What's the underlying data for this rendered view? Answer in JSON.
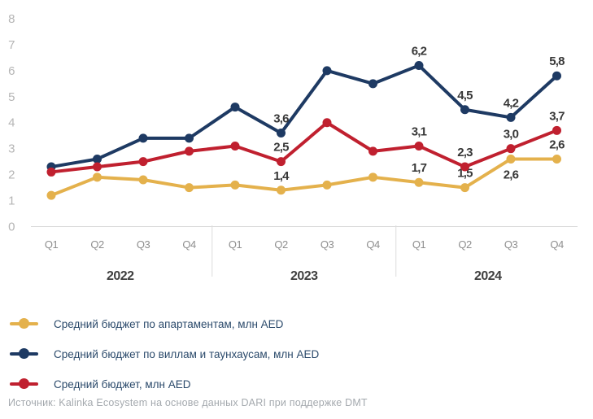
{
  "chart_data": {
    "type": "line",
    "title": "",
    "ylabel": "",
    "xlabel": "",
    "ylim": [
      0,
      8
    ],
    "y_ticks": [
      0,
      1,
      2,
      3,
      4,
      5,
      6,
      7,
      8
    ],
    "grid": false,
    "legend_position": "bottom-left",
    "quarter_labels": [
      "Q1",
      "Q2",
      "Q3",
      "Q4",
      "Q1",
      "Q2",
      "Q3",
      "Q4",
      "Q1",
      "Q2",
      "Q3",
      "Q4"
    ],
    "year_groups": [
      {
        "label": "2022",
        "start": 0,
        "end": 3
      },
      {
        "label": "2023",
        "start": 4,
        "end": 7
      },
      {
        "label": "2024",
        "start": 8,
        "end": 11
      }
    ],
    "series": [
      {
        "key": "apartments",
        "name": "Средний бюджет по апартаментам, млн AED",
        "color": "#E4B14C",
        "values": [
          1.2,
          1.9,
          1.8,
          1.5,
          1.6,
          1.4,
          1.6,
          1.9,
          1.7,
          1.5,
          2.6,
          2.6
        ],
        "point_labels": [
          null,
          null,
          null,
          null,
          null,
          "1,4",
          null,
          null,
          "1,7",
          "1,5",
          "2,6",
          "2,6"
        ],
        "label_side": [
          null,
          null,
          null,
          null,
          null,
          "above",
          null,
          null,
          "above",
          "above",
          "below",
          "above"
        ]
      },
      {
        "key": "villas_townhouses",
        "name": "Средний бюджет по виллам и таунхаусам, млн AED",
        "color": "#1E3A63",
        "values": [
          2.3,
          2.6,
          3.4,
          3.4,
          4.6,
          3.6,
          6.0,
          5.5,
          6.2,
          4.5,
          4.2,
          5.8
        ],
        "point_labels": [
          null,
          null,
          null,
          null,
          null,
          "3,6",
          null,
          null,
          "6,2",
          "4,5",
          "4,2",
          "5,8"
        ],
        "label_side": [
          null,
          null,
          null,
          null,
          null,
          "above",
          null,
          null,
          "above",
          "above",
          "above",
          "above"
        ]
      },
      {
        "key": "average",
        "name": "Средний бюджет, млн AED",
        "color": "#C0202F",
        "values": [
          2.1,
          2.3,
          2.5,
          2.9,
          3.1,
          2.5,
          4.0,
          2.9,
          3.1,
          2.3,
          3.0,
          3.7
        ],
        "point_labels": [
          null,
          null,
          null,
          null,
          null,
          "2,5",
          null,
          null,
          "3,1",
          "2,3",
          "3,0",
          "3,7"
        ],
        "label_side": [
          null,
          null,
          null,
          null,
          null,
          "above",
          null,
          null,
          "above",
          "above",
          "above",
          "above"
        ]
      }
    ]
  },
  "legend": {
    "items": [
      {
        "label": "Средний бюджет по апартаментам, млн AED"
      },
      {
        "label": "Средний бюджет по виллам и таунхаусам, млн AED"
      },
      {
        "label": "Средний бюджет, млн AED"
      }
    ]
  },
  "source": {
    "text": "Источник: Kalinka Ecosystem на основе данных DARI при поддержке DMT"
  },
  "colors": {
    "apartments": "#E4B14C",
    "villas_townhouses": "#1E3A63",
    "average": "#C0202F",
    "axis": "#d9d9d9",
    "y_tick_text": "#b5b5b5",
    "quarter_text": "#8e8e8e",
    "year_text": "#3f3f3f",
    "data_label_text": "#383838",
    "legend_text": "#2b4a6b",
    "source_text": "#a4a9ae"
  }
}
